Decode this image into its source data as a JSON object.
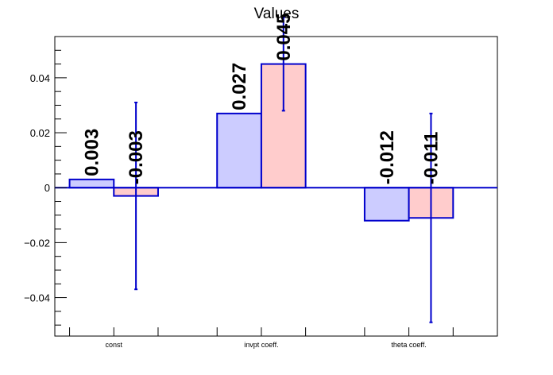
{
  "chart_data": {
    "type": "bar",
    "title": "Values",
    "xlabel": "",
    "ylabel": "",
    "categories": [
      "const",
      "invpt coeff.",
      "theta coeff."
    ],
    "series": [
      {
        "values": [
          0.003,
          0.027,
          -0.012
        ],
        "value_labels": [
          "0.003",
          "0.027",
          "-0.012"
        ],
        "errors": [
          0,
          0,
          0
        ],
        "fill": "#ccccff",
        "stroke": "#0000cc"
      },
      {
        "values": [
          -0.003,
          0.045,
          -0.011
        ],
        "value_labels": [
          "-0.003",
          "0.045",
          "-0.011"
        ],
        "errors": [
          0.034,
          0.017,
          0.038
        ],
        "fill": "#ffcccc",
        "stroke": "#0000cc"
      }
    ],
    "ylim": [
      -0.054,
      0.055
    ],
    "yticks": [
      -0.04,
      -0.02,
      0,
      0.02,
      0.04
    ],
    "ytick_labels": [
      "−0.04",
      "−0.02",
      "0",
      "0.02",
      "0.04"
    ],
    "grid": false,
    "legend": "none",
    "colors": {
      "axis": "#000000",
      "zero_line": "#0000cc",
      "error_bar": "#0000cc"
    }
  }
}
